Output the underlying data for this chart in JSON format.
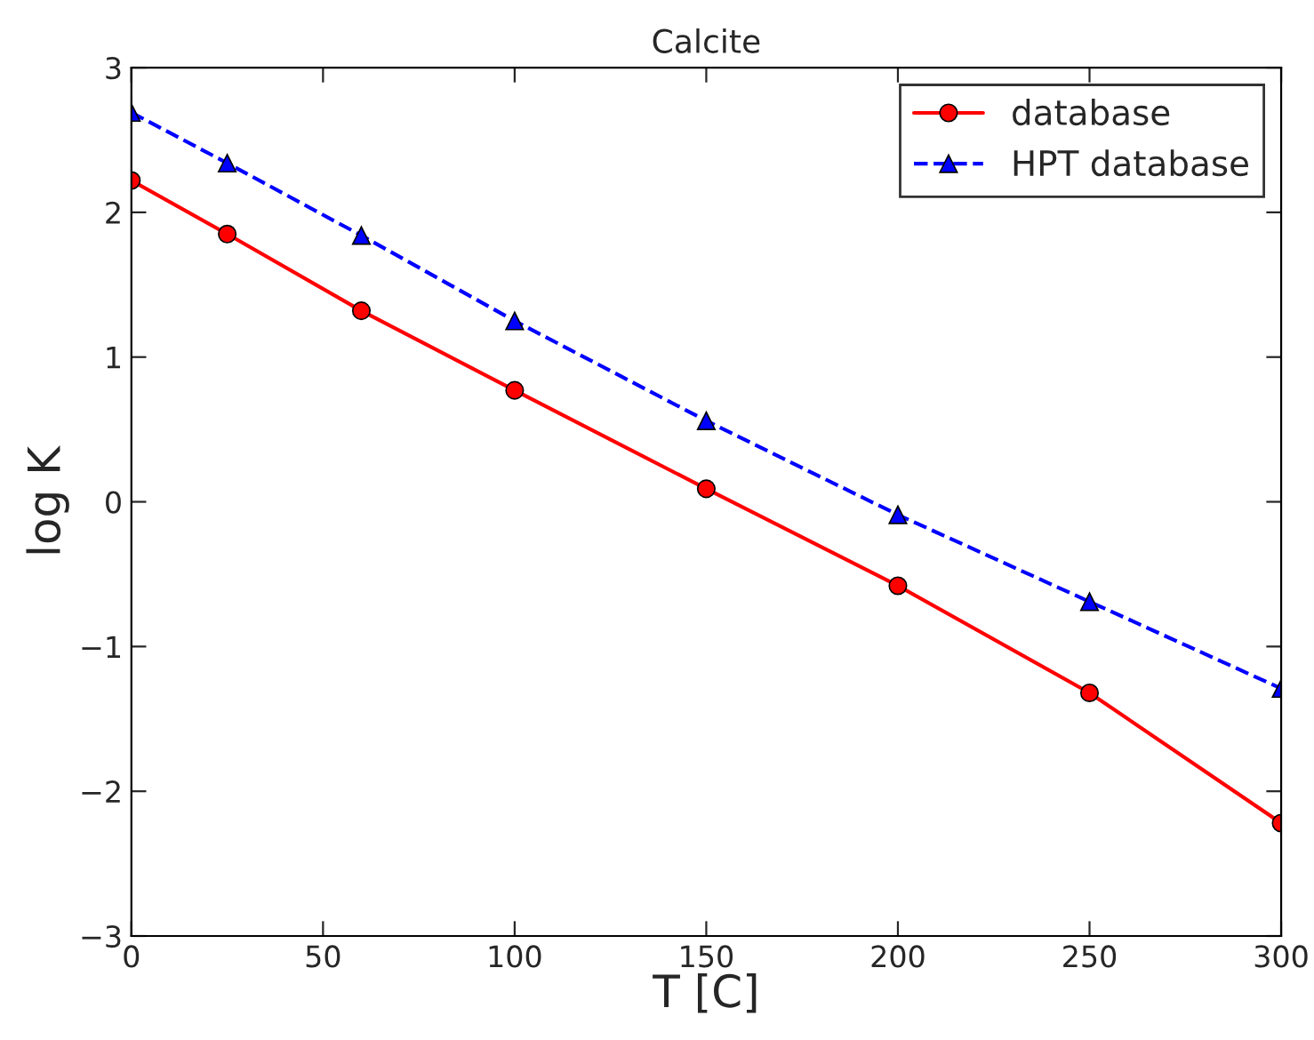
{
  "chart_data": {
    "type": "line",
    "title": "Calcite",
    "xlabel": "T [C]",
    "ylabel": "log K",
    "xlim": [
      0,
      300
    ],
    "xticks": [
      0,
      50,
      100,
      150,
      200,
      250,
      300
    ],
    "ylim": [
      -3,
      3
    ],
    "yticks": [
      -3,
      -2,
      -1,
      0,
      1,
      2,
      3
    ],
    "grid": false,
    "legend": "top right",
    "series": [
      {
        "name": "database",
        "color": "#ff0000",
        "marker": "circle",
        "line_style": "solid",
        "x": [
          0,
          25,
          60,
          100,
          150,
          200,
          250,
          300
        ],
        "values": [
          2.22,
          1.85,
          1.32,
          0.77,
          0.09,
          -0.58,
          -1.32,
          -2.22
        ]
      },
      {
        "name": "HPT database",
        "color": "#0000ff",
        "marker": "triangle",
        "line_style": "dashed",
        "x": [
          0,
          25,
          60,
          100,
          150,
          200,
          250,
          300
        ],
        "values": [
          2.69,
          2.34,
          1.84,
          1.25,
          0.56,
          -0.09,
          -0.69,
          -1.29
        ]
      }
    ]
  }
}
